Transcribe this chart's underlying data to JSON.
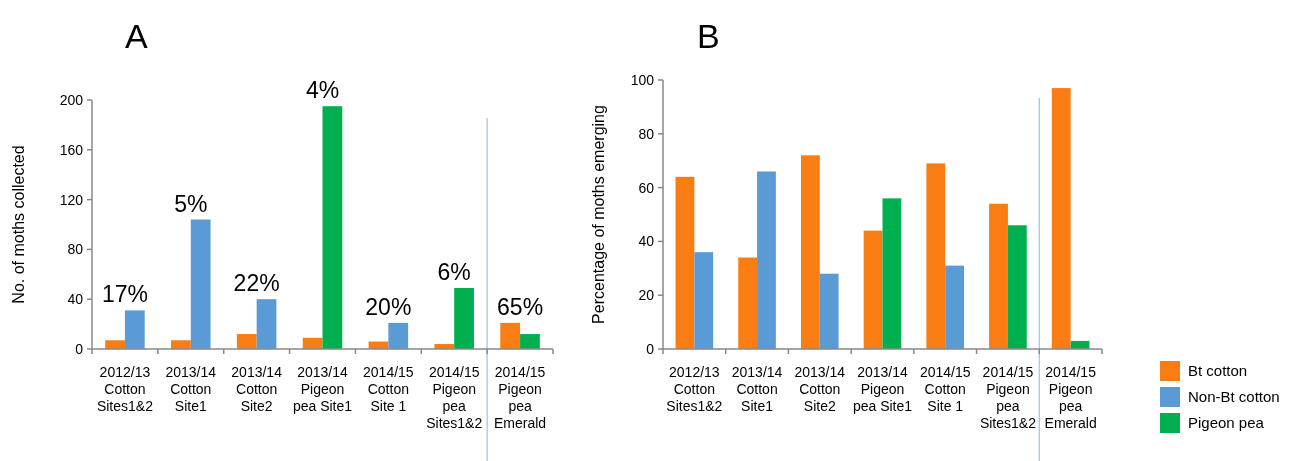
{
  "chart_data": [
    {
      "type": "bar",
      "title": "A",
      "ylabel": "No. of moths collected",
      "categories": [
        "2012/13\nCotton\nSites1&2",
        "2013/14\nCotton\nSite1",
        "2013/14\nCotton\nSite2",
        "2013/14\nPigeon\npea Site1",
        "2014/15\nCotton\nSite 1",
        "2014/15\nPigeon\npea\nSites1&2",
        "2014/15\nPigeon\npea\nEmerald"
      ],
      "series": [
        {
          "color": "#f97d12",
          "values": [
            7,
            7,
            12,
            9,
            6,
            4,
            21
          ]
        },
        {
          "color": "#5b9bd5",
          "values": [
            31,
            104,
            40,
            null,
            21,
            null,
            null
          ]
        },
        {
          "color": "#00b050",
          "values": [
            null,
            null,
            null,
            195,
            null,
            49,
            12
          ]
        }
      ],
      "ylim": [
        0,
        200
      ],
      "yticks": [
        0,
        40,
        80,
        120,
        160,
        200
      ],
      "grid": false,
      "legend": false,
      "ref_lines": [
        {
          "axis": "x",
          "value": "2014/15\nPigeon\npea\nEmerald",
          "color": "#9dc3e6"
        }
      ],
      "annotations": [
        {
          "text": "17%",
          "x": "2012/13\nCotton\nSites1&2",
          "y": 31
        },
        {
          "text": "5%",
          "x": "2013/14\nCotton\nSite1",
          "y": 104
        },
        {
          "text": "22%",
          "x": "2013/14\nCotton\nSite2",
          "y": 40
        },
        {
          "text": "4%",
          "x": "2013/14\nPigeon\npea Site1",
          "y": 195
        },
        {
          "text": "20%",
          "x": "2014/15\nCotton\nSite 1",
          "y": 21
        },
        {
          "text": "6%",
          "x": "2014/15\nPigeon\npea\nSites1&2",
          "y": 49
        },
        {
          "text": "65%",
          "x": "2014/15\nPigeon\npea\nEmerald",
          "y": 21
        }
      ]
    },
    {
      "type": "bar",
      "title": "B",
      "ylabel": "Percentage of moths emerging",
      "categories": [
        "2012/13\nCotton\nSites1&2",
        "2013/14\nCotton\nSite1",
        "2013/14\nCotton\nSite2",
        "2013/14\nPigeon\npea Site1",
        "2014/15\nCotton\nSite 1",
        "2014/15\nPigeon\npea\nSites1&2",
        "2014/15\nPigeon\npea\nEmerald"
      ],
      "series": [
        {
          "name": "Bt cotton",
          "color": "#f97d12",
          "values": [
            64,
            34,
            72,
            44,
            69,
            54,
            97
          ]
        },
        {
          "name": "Non-Bt cotton",
          "color": "#5b9bd5",
          "values": [
            36,
            66,
            28,
            null,
            31,
            null,
            null
          ]
        },
        {
          "name": "Pigeon pea",
          "color": "#00b050",
          "values": [
            null,
            null,
            null,
            56,
            null,
            46,
            3
          ]
        }
      ],
      "ylim": [
        0,
        100
      ],
      "yticks": [
        0,
        20,
        40,
        60,
        80,
        100
      ],
      "grid": false,
      "legend": "right",
      "ref_lines": [
        {
          "axis": "x",
          "value": "2014/15\nPigeon\npea\nEmerald",
          "color": "#9dc3e6"
        }
      ]
    }
  ]
}
